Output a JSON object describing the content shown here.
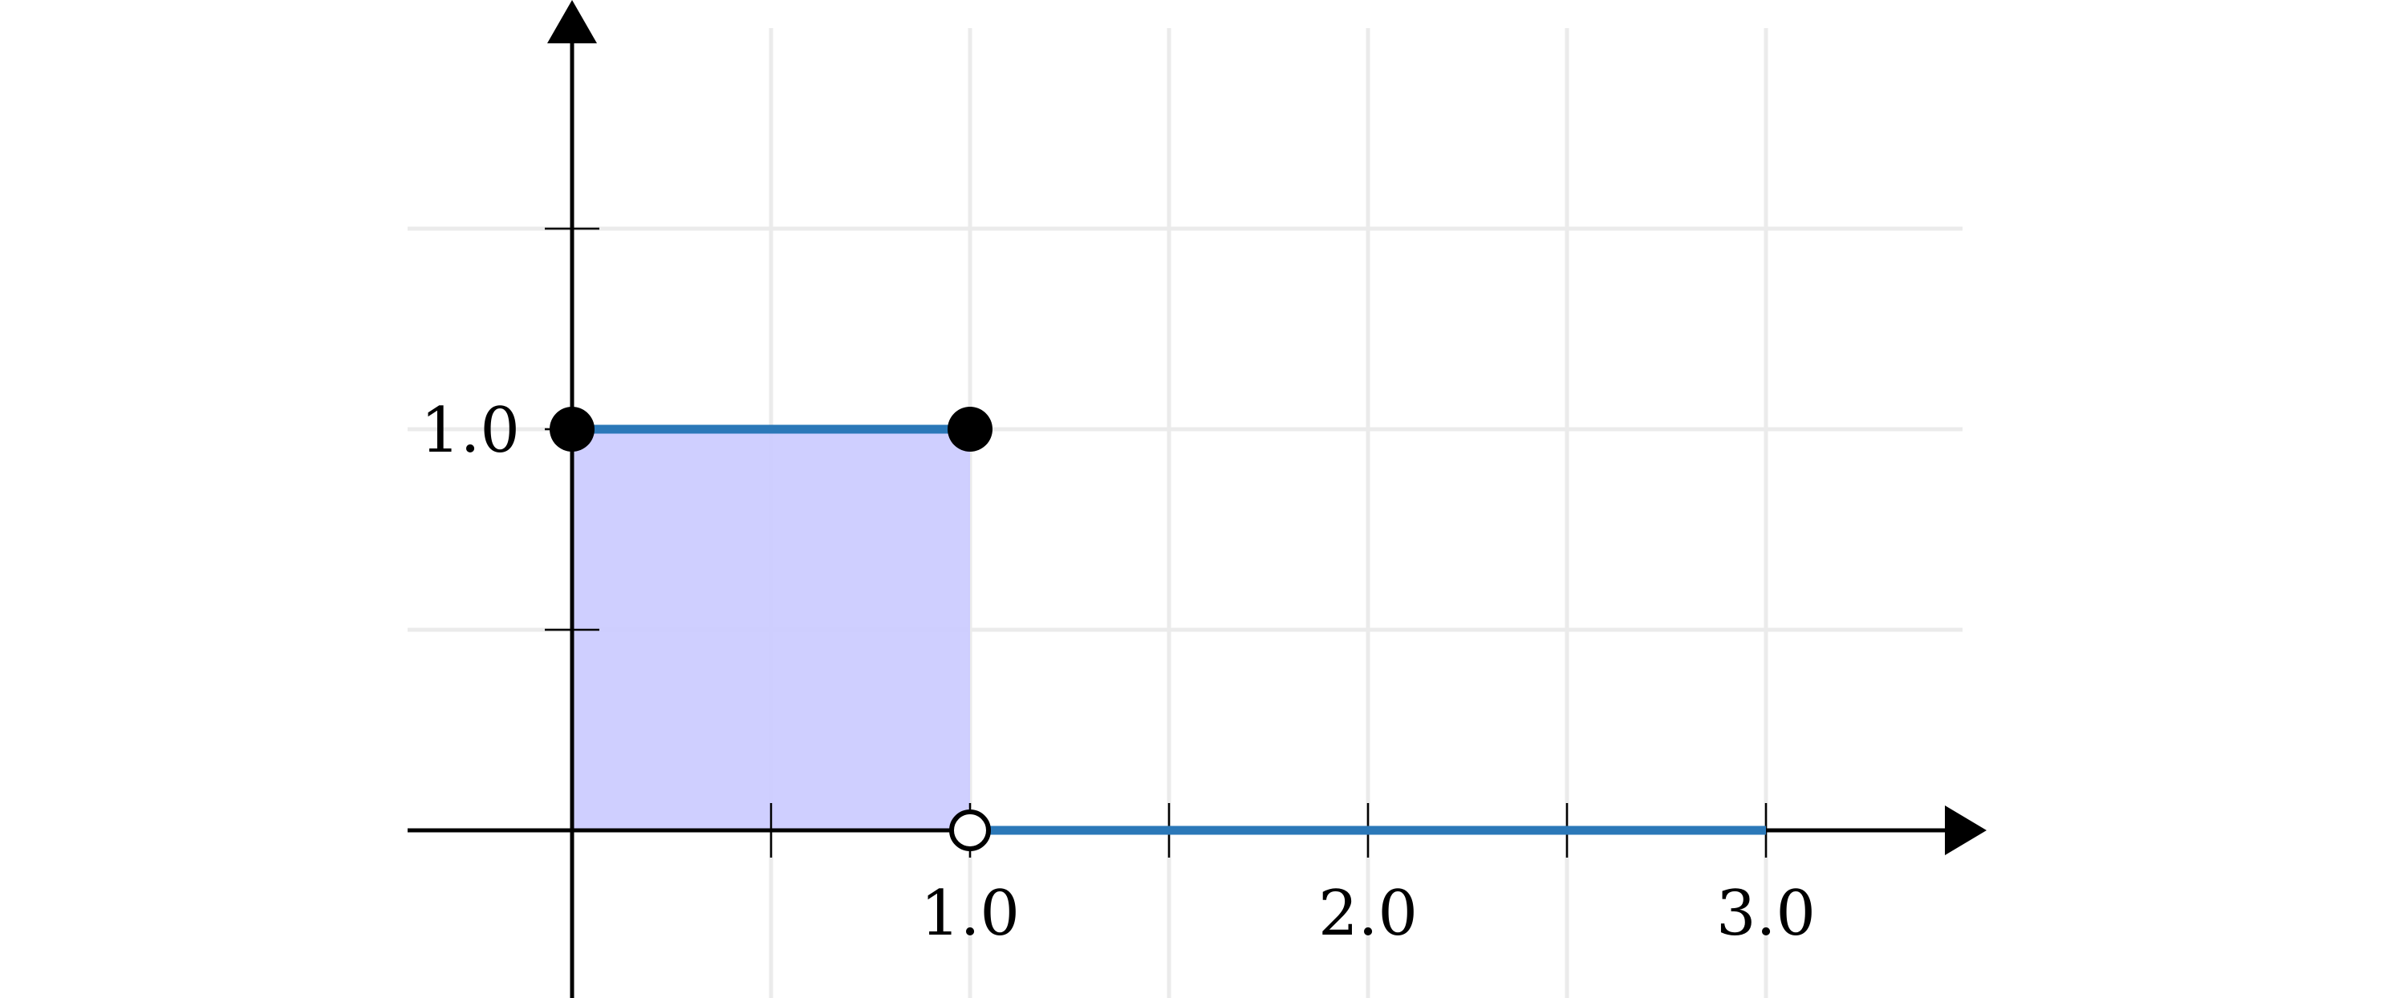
{
  "chart_data": {
    "type": "line",
    "title": "",
    "xlabel": "",
    "ylabel": "",
    "xlim": [
      -0.4167,
      3.5
    ],
    "ylim": [
      -0.417,
      2.0
    ],
    "x_gridlines": [
      0.5,
      1.0,
      1.5,
      2.0,
      2.5,
      3.0
    ],
    "y_gridlines": [
      0.5,
      1.0,
      1.5
    ],
    "x_ticks": [
      0.5,
      1.0,
      1.5,
      2.0,
      2.5,
      3.0
    ],
    "y_ticks": [
      0.5,
      1.0,
      1.5
    ],
    "x_tick_labels": [
      {
        "value": 1.0,
        "label": "1.0"
      },
      {
        "value": 2.0,
        "label": "2.0"
      },
      {
        "value": 3.0,
        "label": "3.0"
      }
    ],
    "y_tick_labels": [
      {
        "value": 1.0,
        "label": "1.0"
      }
    ],
    "grid": true,
    "series": [
      {
        "segments": [
          {
            "x": [
              0,
              1
            ],
            "y": [
              1,
              1
            ]
          },
          {
            "x": [
              1,
              3
            ],
            "y": [
              0,
              0
            ]
          }
        ],
        "color": "#2b78b8"
      }
    ],
    "points": [
      {
        "x": 0,
        "y": 1,
        "style": "closed"
      },
      {
        "x": 1,
        "y": 1,
        "style": "closed"
      },
      {
        "x": 1,
        "y": 0,
        "style": "open"
      }
    ],
    "shaded_region": {
      "x": [
        0,
        1
      ],
      "y": [
        0,
        1
      ],
      "color": "#ccccff"
    }
  }
}
